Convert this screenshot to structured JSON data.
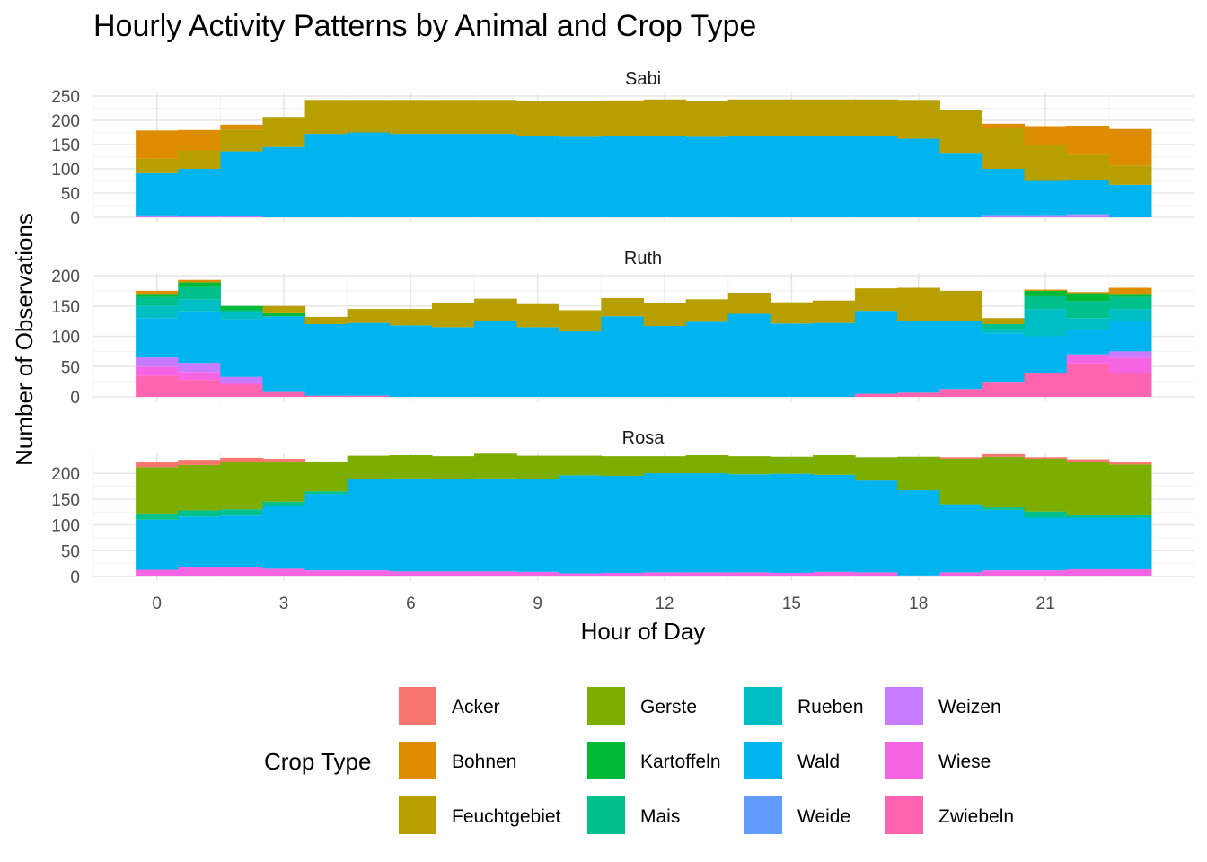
{
  "chart_data": {
    "type": "bar",
    "subtype": "stacked-histogram-faceted",
    "title": "Hourly Activity Patterns by Animal and Crop Type",
    "xlabel": "Hour of Day",
    "ylabel": "Number of Observations",
    "xlim": [
      -1.5,
      24.5
    ],
    "x_ticks": [
      0,
      3,
      6,
      9,
      12,
      15,
      18,
      21
    ],
    "hours": [
      0,
      1,
      2,
      3,
      4,
      5,
      6,
      7,
      8,
      9,
      10,
      11,
      12,
      13,
      14,
      15,
      16,
      17,
      18,
      19,
      20,
      21,
      22,
      23
    ],
    "crop_types": [
      "Acker",
      "Bohnen",
      "Feuchtgebiet",
      "Gerste",
      "Kartoffeln",
      "Mais",
      "Rueben",
      "Wald",
      "Weide",
      "Weizen",
      "Wiese",
      "Zwiebeln"
    ],
    "colors": {
      "Acker": "#F8766D",
      "Bohnen": "#DE8C00",
      "Feuchtgebiet": "#B79F00",
      "Gerste": "#7CAE00",
      "Kartoffeln": "#00BA38",
      "Mais": "#00C08B",
      "Rueben": "#00BFC4",
      "Wald": "#00B4F0",
      "Weide": "#619CFF",
      "Weizen": "#C77CFF",
      "Wiese": "#F564E3",
      "Zwiebeln": "#FF64B0"
    },
    "legend": {
      "title": "Crop Type",
      "position": "bottom",
      "columns": 4
    },
    "grid": true,
    "facets": [
      {
        "name": "Sabi",
        "ylim": [
          0,
          250
        ],
        "y_ticks": [
          0,
          50,
          100,
          150,
          200,
          250
        ],
        "series": [
          {
            "name": "Bohnen",
            "values": [
              58,
              42,
              10,
              0,
              0,
              0,
              0,
              0,
              0,
              0,
              0,
              0,
              0,
              0,
              0,
              0,
              0,
              0,
              0,
              0,
              8,
              38,
              60,
              75
            ]
          },
          {
            "name": "Feuchtgebiet",
            "values": [
              30,
              38,
              45,
              62,
              70,
              67,
              70,
              70,
              70,
              72,
              73,
              73,
              75,
              73,
              75,
              75,
              75,
              75,
              80,
              88,
              85,
              75,
              52,
              40
            ]
          },
          {
            "name": "Wald",
            "values": [
              87,
              98,
              133,
              145,
              172,
              175,
              172,
              172,
              172,
              167,
              166,
              168,
              168,
              166,
              168,
              168,
              168,
              168,
              162,
              133,
              95,
              70,
              70,
              67
            ]
          },
          {
            "name": "Weide",
            "values": [
              0,
              0,
              0,
              0,
              0,
              0,
              0,
              0,
              0,
              0,
              0,
              0,
              0,
              0,
              0,
              0,
              0,
              0,
              0,
              0,
              2,
              3,
              2,
              0
            ]
          },
          {
            "name": "Weizen",
            "values": [
              4,
              2,
              3,
              0,
              0,
              0,
              0,
              0,
              0,
              0,
              0,
              0,
              0,
              0,
              0,
              0,
              0,
              0,
              0,
              0,
              3,
              2,
              5,
              0
            ]
          }
        ]
      },
      {
        "name": "Ruth",
        "ylim": [
          0,
          200
        ],
        "y_ticks": [
          0,
          50,
          100,
          150,
          200
        ],
        "series": [
          {
            "name": "Bohnen",
            "values": [
              5,
              4,
              0,
              0,
              0,
              0,
              0,
              0,
              0,
              0,
              0,
              0,
              0,
              0,
              0,
              0,
              0,
              0,
              0,
              0,
              0,
              2,
              2,
              10
            ]
          },
          {
            "name": "Feuchtgebiet",
            "values": [
              0,
              0,
              0,
              12,
              12,
              23,
              27,
              40,
              37,
              38,
              35,
              30,
              38,
              37,
              35,
              35,
              37,
              37,
              55,
              50,
              10,
              0,
              0,
              0
            ]
          },
          {
            "name": "Kartoffeln",
            "values": [
              5,
              8,
              7,
              5,
              0,
              0,
              0,
              0,
              0,
              0,
              0,
              0,
              0,
              0,
              0,
              0,
              0,
              0,
              0,
              0,
              0,
              9,
              13,
              5
            ]
          },
          {
            "name": "Mais",
            "values": [
              15,
              20,
              3,
              0,
              0,
              0,
              0,
              0,
              0,
              0,
              0,
              0,
              0,
              0,
              0,
              0,
              0,
              0,
              0,
              0,
              8,
              21,
              28,
              20
            ]
          },
          {
            "name": "Rueben",
            "values": [
              20,
              20,
              12,
              0,
              0,
              0,
              0,
              0,
              0,
              0,
              0,
              0,
              0,
              0,
              0,
              0,
              0,
              0,
              0,
              0,
              7,
              45,
              20,
              20
            ]
          },
          {
            "name": "Wald",
            "values": [
              65,
              85,
              95,
              125,
              118,
              120,
              118,
              115,
              125,
              115,
              108,
              133,
              117,
              124,
              137,
              121,
              122,
              137,
              118,
              112,
              80,
              60,
              40,
              50
            ]
          },
          {
            "name": "Weizen",
            "values": [
              15,
              15,
              10,
              0,
              0,
              0,
              0,
              0,
              0,
              0,
              0,
              0,
              0,
              0,
              0,
              0,
              0,
              0,
              0,
              0,
              0,
              0,
              0,
              10
            ]
          },
          {
            "name": "Wiese",
            "values": [
              15,
              13,
              3,
              0,
              0,
              0,
              0,
              0,
              0,
              0,
              0,
              0,
              0,
              0,
              0,
              0,
              0,
              0,
              0,
              0,
              0,
              0,
              15,
              25
            ]
          },
          {
            "name": "Zwiebeln",
            "values": [
              35,
              28,
              20,
              8,
              2,
              2,
              0,
              0,
              0,
              0,
              0,
              0,
              0,
              0,
              0,
              0,
              0,
              5,
              7,
              13,
              25,
              40,
              55,
              40
            ]
          }
        ]
      },
      {
        "name": "Rosa",
        "ylim": [
          0,
          235
        ],
        "y_ticks": [
          0,
          50,
          100,
          150,
          200
        ],
        "series": [
          {
            "name": "Acker",
            "values": [
              10,
              10,
              8,
              5,
              0,
              0,
              0,
              0,
              0,
              0,
              0,
              0,
              0,
              0,
              0,
              0,
              0,
              0,
              0,
              3,
              5,
              3,
              5,
              5
            ]
          },
          {
            "name": "Gerste",
            "values": [
              90,
              88,
              92,
              78,
              58,
              45,
              45,
              45,
              48,
              45,
              38,
              38,
              33,
              35,
              35,
              33,
              38,
              45,
              65,
              88,
              98,
              102,
              102,
              98
            ]
          },
          {
            "name": "Mais",
            "values": [
              12,
              12,
              12,
              8,
              5,
              0,
              0,
              0,
              0,
              0,
              0,
              0,
              0,
              0,
              0,
              0,
              0,
              0,
              0,
              0,
              5,
              12,
              6,
              5
            ]
          },
          {
            "name": "Wald",
            "values": [
              97,
              98,
              100,
              122,
              148,
              177,
              180,
              178,
              180,
              180,
              190,
              188,
              192,
              192,
              190,
              192,
              188,
              178,
              165,
              132,
              117,
              102,
              100,
              100
            ]
          },
          {
            "name": "Wiese",
            "values": [
              13,
              18,
              18,
              15,
              12,
              12,
              10,
              10,
              10,
              9,
              6,
              7,
              8,
              8,
              8,
              7,
              9,
              8,
              2,
              8,
              12,
              12,
              14,
              14
            ]
          }
        ]
      }
    ]
  }
}
